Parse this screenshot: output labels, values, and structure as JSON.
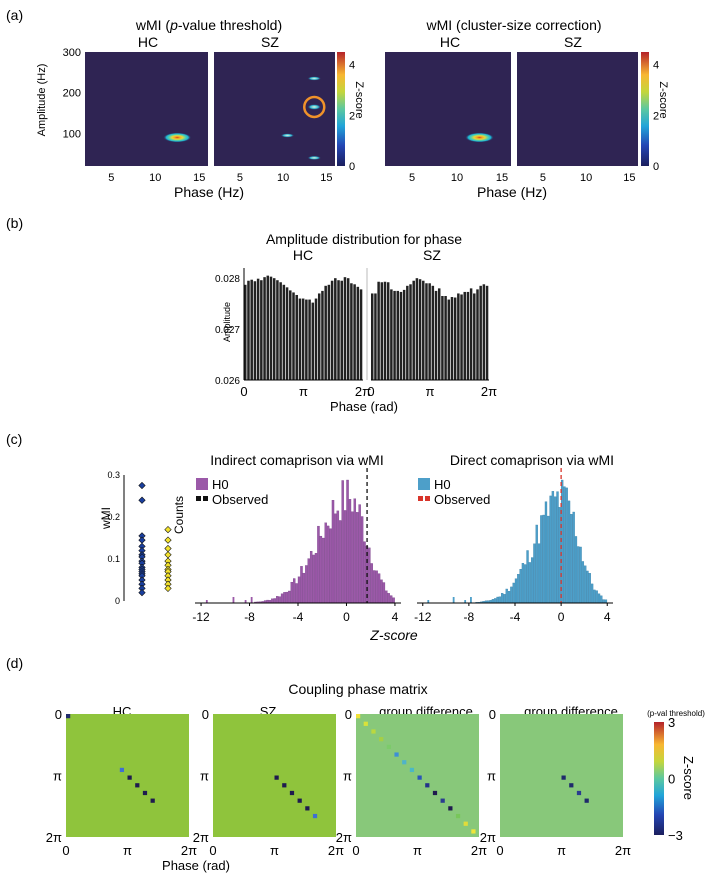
{
  "chart_data": {
    "panel_a": {
      "label": "(a)",
      "left": {
        "type": "heatmap",
        "title_prefix": "wMI (",
        "title_italic": "p",
        "title_suffix": "-value threshold)",
        "subplots": [
          "HC",
          "SZ"
        ],
        "xlabel": "Phase (Hz)",
        "ylabel": "Amplitude (Hz)",
        "xlim": [
          2,
          16
        ],
        "ylim": [
          20,
          300
        ],
        "xticks": [
          5,
          10,
          15
        ],
        "yticks": [
          100,
          200,
          300
        ],
        "colorbar_label": "Z-score",
        "colorbar_range": [
          0,
          4.5
        ],
        "colorbar_ticks": [
          0,
          2,
          4
        ],
        "blobs": {
          "HC": [
            {
              "x": 12.5,
              "y": 90,
              "z": 4.5,
              "rx": 1.6,
              "ry": 12
            }
          ],
          "SZ": [
            {
              "x": 13.6,
              "y": 235,
              "z": 1.5,
              "rx": 0.8,
              "ry": 5
            },
            {
              "x": 13.6,
              "y": 165,
              "z": 1.8,
              "rx": 0.8,
              "ry": 7
            },
            {
              "x": 10.5,
              "y": 95,
              "z": 1.5,
              "rx": 0.8,
              "ry": 5
            },
            {
              "x": 13.6,
              "y": 40,
              "z": 1.5,
              "rx": 0.8,
              "ry": 5
            }
          ]
        },
        "annotation": "circle around SZ peak"
      },
      "right": {
        "type": "heatmap",
        "title": "wMI (cluster-size correction)",
        "subplots": [
          "HC",
          "SZ"
        ],
        "xlabel": "Phase (Hz)",
        "xlim": [
          2,
          16
        ],
        "ylim": [
          20,
          300
        ],
        "xticks": [
          5,
          10,
          15
        ],
        "colorbar_label": "Z-score",
        "colorbar_range": [
          0,
          4.5
        ],
        "colorbar_ticks": [
          0,
          2,
          4
        ],
        "blobs": {
          "HC": [
            {
              "x": 12.5,
              "y": 90,
              "z": 4.5,
              "rx": 1.6,
              "ry": 12
            }
          ],
          "SZ": []
        }
      }
    },
    "panel_b": {
      "label": "(b)",
      "type": "bar",
      "title": "Amplitude distribution for phase",
      "subplots": [
        "HC",
        "SZ"
      ],
      "xlabel": "Phase (rad)",
      "ylabel": "Amplitude",
      "ylim": [
        0.026,
        0.0282
      ],
      "yticks": [
        0.026,
        0.027,
        0.028
      ],
      "xtick_labels": [
        "0",
        "π",
        "2π"
      ],
      "HC_values": [
        0.02787,
        0.02795,
        0.02797,
        0.02794,
        0.02799,
        0.02796,
        0.02802,
        0.02805,
        0.02803,
        0.028,
        0.02796,
        0.02792,
        0.02787,
        0.02782,
        0.02776,
        0.02772,
        0.02767,
        0.0276,
        0.0276,
        0.02758,
        0.02758,
        0.02752,
        0.0276,
        0.0277,
        0.02775,
        0.02785,
        0.02787,
        0.02795,
        0.028,
        0.02796,
        0.02795,
        0.02802,
        0.028,
        0.0279,
        0.02788,
        0.02783,
        0.02778
      ],
      "SZ_values": [
        0.0277,
        0.0277,
        0.02793,
        0.02792,
        0.02793,
        0.02792,
        0.02778,
        0.02775,
        0.02775,
        0.02773,
        0.02777,
        0.02785,
        0.02788,
        0.02795,
        0.028,
        0.02798,
        0.02795,
        0.0279,
        0.0279,
        0.02785,
        0.02775,
        0.0278,
        0.02765,
        0.02765,
        0.02758,
        0.02763,
        0.02762,
        0.0277,
        0.02768,
        0.02773,
        0.02773,
        0.0278,
        0.0277,
        0.02778,
        0.02785,
        0.02788,
        0.02785
      ]
    },
    "panel_c": {
      "label": "(c)",
      "strip": {
        "type": "scatter",
        "ylabel": "wMI",
        "ylim": [
          0,
          0.3
        ],
        "yticks": [
          0,
          0.1,
          0.2,
          0.3
        ],
        "HC_values": [
          0.275,
          0.24,
          0.155,
          0.145,
          0.13,
          0.12,
          0.11,
          0.105,
          0.095,
          0.09,
          0.08,
          0.075,
          0.07,
          0.065,
          0.06,
          0.05,
          0.04,
          0.03,
          0.02
        ],
        "SZ_values": [
          0.17,
          0.145,
          0.125,
          0.11,
          0.095,
          0.085,
          0.075,
          0.07,
          0.06,
          0.05,
          0.04,
          0.03
        ]
      },
      "indirect": {
        "type": "bar",
        "title": "Indirect comaprison via wMI",
        "legend": [
          "H0",
          "Observed"
        ],
        "ylabel": "Counts",
        "xlim": [
          -12.5,
          4.5
        ],
        "xticks": [
          -12,
          -8,
          -4,
          0,
          4
        ],
        "observed_z": 1.7,
        "color": "#9b59a8",
        "mean": 0.2,
        "sd": 1.6,
        "seed": 7
      },
      "direct": {
        "type": "bar",
        "title": "Direct comaprison via wMI",
        "legend": [
          "H0",
          "Observed"
        ],
        "xlim": [
          -12.5,
          4.5
        ],
        "xticks": [
          -12,
          -8,
          -4,
          0,
          4
        ],
        "observed_z": 0.0,
        "color": "#4d9fc9",
        "mean": 0.1,
        "sd": 1.5,
        "seed": 11
      },
      "shared_xlabel": "Z-score"
    },
    "panel_d": {
      "label": "(d)",
      "type": "heatmap",
      "title": "Coupling phase matrix",
      "subplots": [
        "HC",
        "SZ",
        "group difference",
        "group difference"
      ],
      "xlabel": "Phase (rad)",
      "tick_labels": [
        "0",
        "π",
        "2π"
      ],
      "colorbar_label": "Z-score",
      "colorbar_title": "(p-val threshold)",
      "colorbar_ticks": [
        3,
        0,
        -3
      ],
      "colorbar_range": [
        -3,
        3
      ],
      "grid_n": 16,
      "backgrounds": [
        "#8fc43c",
        "#8fc43c",
        "#88c87a",
        "#88c87a"
      ],
      "diagonal_cells": [
        [
          [
            0,
            0,
            "#1f2a6b"
          ],
          [
            7,
            7,
            "#3f6fd1"
          ],
          [
            8,
            8,
            "#1f1b4e"
          ],
          [
            9,
            9,
            "#1f1b4e"
          ],
          [
            10,
            10,
            "#1f1b4e"
          ],
          [
            11,
            11,
            "#1f1b4e"
          ]
        ],
        [
          [
            8,
            8,
            "#1f1b4e"
          ],
          [
            9,
            9,
            "#1f1b4e"
          ],
          [
            10,
            10,
            "#1f1b4e"
          ],
          [
            11,
            11,
            "#1f1b4e"
          ],
          [
            12,
            12,
            "#1f1b4e"
          ],
          [
            13,
            13,
            "#3f6fd1"
          ]
        ],
        [
          [
            0,
            0,
            "#f2e33a"
          ],
          [
            1,
            1,
            "#d9e23a"
          ],
          [
            2,
            2,
            "#bbd83f"
          ],
          [
            3,
            3,
            "#a5cf46"
          ],
          [
            4,
            4,
            "#7ccb6a"
          ],
          [
            5,
            5,
            "#3d8fd6"
          ],
          [
            6,
            6,
            "#4fb3c9"
          ],
          [
            7,
            7,
            "#4bb8c4"
          ],
          [
            8,
            8,
            "#2a55b8"
          ],
          [
            9,
            9,
            "#23338a"
          ],
          [
            10,
            10,
            "#1f1b4e"
          ],
          [
            11,
            11,
            "#2a3c8f"
          ],
          [
            12,
            12,
            "#1f1b4e"
          ],
          [
            13,
            13,
            "#78c65a"
          ],
          [
            14,
            14,
            "#e1dc3a"
          ],
          [
            15,
            15,
            "#f0e53a"
          ]
        ],
        [
          [
            8,
            8,
            "#1f2a6b"
          ],
          [
            9,
            9,
            "#1f2a6b"
          ],
          [
            10,
            10,
            "#2a3c8f"
          ],
          [
            11,
            11,
            "#1f2a6b"
          ]
        ]
      ]
    }
  }
}
